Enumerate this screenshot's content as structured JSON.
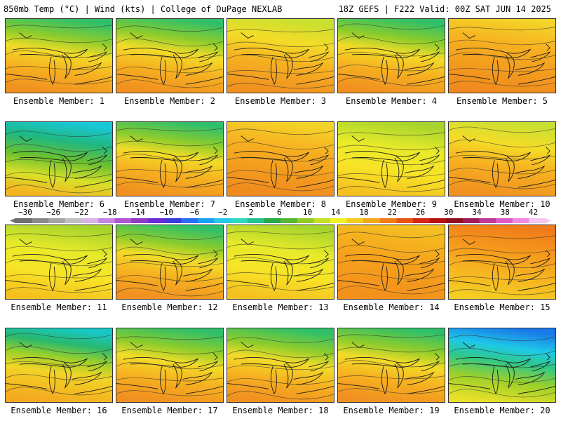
{
  "header": {
    "left": "850mb Temp (°C) | Wind (kts) | College of DuPage NEXLAB",
    "right": "18Z GEFS | F222 Valid: 00Z SAT JUN 14 2025"
  },
  "members": [
    {
      "label": "Ensemble Member: 1",
      "tone": "warm-north-green"
    },
    {
      "label": "Ensemble Member: 2",
      "tone": "warm-north-green"
    },
    {
      "label": "Ensemble Member: 3",
      "tone": "warm-north-yellow"
    },
    {
      "label": "Ensemble Member: 4",
      "tone": "warm-north-green"
    },
    {
      "label": "Ensemble Member: 5",
      "tone": "warm"
    },
    {
      "label": "Ensemble Member: 6",
      "tone": "cool-north-cyan"
    },
    {
      "label": "Ensemble Member: 7",
      "tone": "warm-north-green"
    },
    {
      "label": "Ensemble Member: 8",
      "tone": "warm"
    },
    {
      "label": "Ensemble Member: 9",
      "tone": "yellow-green"
    },
    {
      "label": "Ensemble Member: 10",
      "tone": "warm-north-yellow"
    },
    {
      "label": "Ensemble Member: 11",
      "tone": "yellow-green"
    },
    {
      "label": "Ensemble Member: 12",
      "tone": "warm-north-green"
    },
    {
      "label": "Ensemble Member: 13",
      "tone": "yellow-green"
    },
    {
      "label": "Ensemble Member: 14",
      "tone": "warm-east-green"
    },
    {
      "label": "Ensemble Member: 15",
      "tone": "hot"
    },
    {
      "label": "Ensemble Member: 16",
      "tone": "warm-north-cyan"
    },
    {
      "label": "Ensemble Member: 17",
      "tone": "warm-north-green"
    },
    {
      "label": "Ensemble Member: 18",
      "tone": "warm-north-green"
    },
    {
      "label": "Ensemble Member: 19",
      "tone": "warm-north-green"
    },
    {
      "label": "Ensemble Member: 20",
      "tone": "cool-north-blue"
    }
  ],
  "colorbar": {
    "ticks": [
      "-30",
      "-26",
      "-22",
      "-18",
      "-14",
      "-10",
      "-6",
      "-2",
      "2",
      "6",
      "10",
      "14",
      "18",
      "22",
      "26",
      "30",
      "34",
      "38",
      "42"
    ],
    "colors": [
      "#6e6e6e",
      "#8a8a8a",
      "#a5a5a5",
      "#c0c0c0",
      "#d8b4e6",
      "#c685e0",
      "#b055d2",
      "#8f3bc6",
      "#6a2bd0",
      "#3a3adf",
      "#2a6ef0",
      "#1ea0f2",
      "#28c8e8",
      "#2fd8c0",
      "#25c48e",
      "#2aa84a",
      "#58b630",
      "#8fcc28",
      "#c4e028",
      "#f2f026",
      "#f6cc20",
      "#f4a81c",
      "#f07e18",
      "#e85416",
      "#d82614",
      "#b81010",
      "#8e1020",
      "#a01c5a",
      "#c03a9a",
      "#e05ac8",
      "#f08ae0",
      "#f8c4f0"
    ]
  }
}
